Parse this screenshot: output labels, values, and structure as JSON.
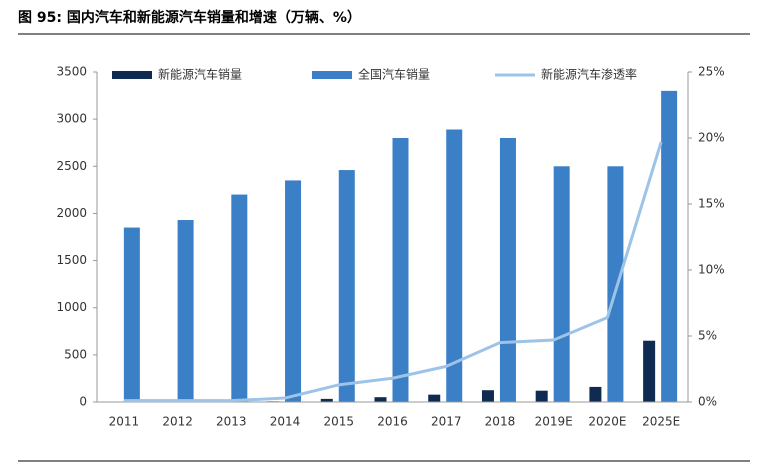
{
  "chart_data": {
    "type": "bar_line",
    "title": "图 95: 国内汽车和新能源汽车销量和增速（万辆、%）",
    "categories": [
      "2011",
      "2012",
      "2013",
      "2014",
      "2015",
      "2016",
      "2017",
      "2018",
      "2019E",
      "2020E",
      "2025E"
    ],
    "series": [
      {
        "name": "新能源汽车销量",
        "color": "#0f2b52",
        "type": "bar",
        "values": [
          1,
          1,
          2,
          7,
          33,
          51,
          78,
          125,
          120,
          160,
          650
        ]
      },
      {
        "name": "全国汽车销量",
        "color": "#3b7fc6",
        "type": "bar",
        "values": [
          1850,
          1930,
          2200,
          2350,
          2460,
          2800,
          2890,
          2800,
          2500,
          2500,
          3300
        ]
      },
      {
        "name": "新能源汽车渗透率",
        "color": "#9dc4e8",
        "type": "line",
        "axis": "y2",
        "values": [
          0.1,
          0.1,
          0.1,
          0.3,
          1.3,
          1.8,
          2.7,
          4.5,
          4.7,
          6.4,
          19.7
        ]
      }
    ],
    "ylim": [
      0,
      3500
    ],
    "yticks": [
      0,
      500,
      1000,
      1500,
      2000,
      2500,
      3000,
      3500
    ],
    "y2lim": [
      0,
      25
    ],
    "y2ticks": [
      {
        "value": 0,
        "label": "0%"
      },
      {
        "value": 5,
        "label": "5%"
      },
      {
        "value": 10,
        "label": "10%"
      },
      {
        "value": 15,
        "label": "15%"
      },
      {
        "value": 20,
        "label": "20%"
      },
      {
        "value": 25,
        "label": "25%"
      }
    ]
  }
}
